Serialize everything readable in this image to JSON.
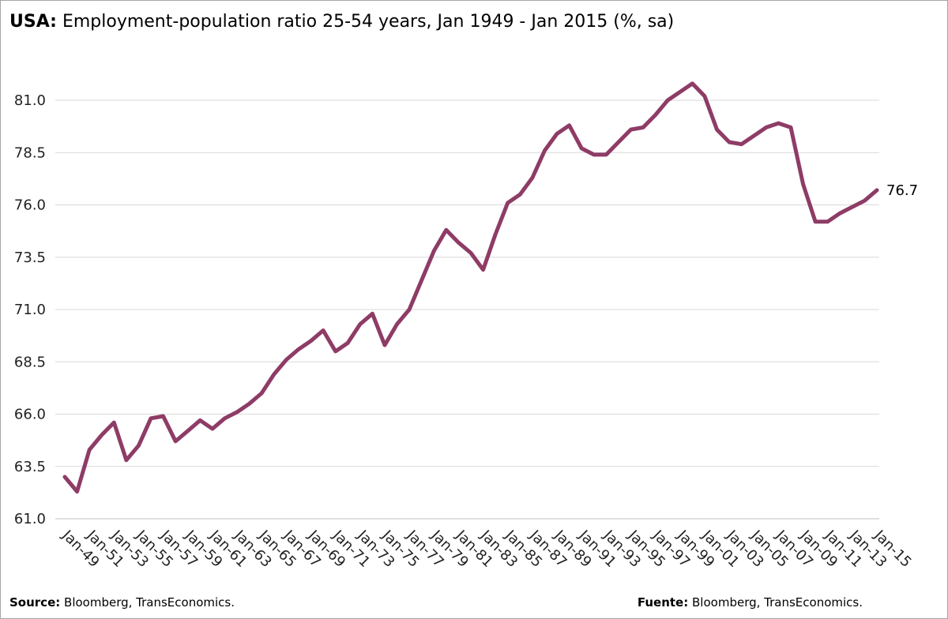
{
  "chart_data": {
    "type": "line",
    "title_bold": "USA:",
    "title": "Employment-population ratio 25-54 years, Jan 1949 - Jan 2015 (%, sa)",
    "source_left": {
      "label": "Source:",
      "text": "Bloomberg, TransEconomics."
    },
    "source_right": {
      "label": "Fuente:",
      "text": "Bloomberg, TransEconomics."
    },
    "categories": [
      "Jan-49",
      null,
      "Jan-51",
      null,
      "Jan-53",
      null,
      "Jan-55",
      null,
      "Jan-57",
      null,
      "Jan-59",
      null,
      "Jan-61",
      null,
      "Jan-63",
      null,
      "Jan-65",
      null,
      "Jan-67",
      null,
      "Jan-69",
      null,
      "Jan-71",
      null,
      "Jan-73",
      null,
      "Jan-75",
      null,
      "Jan-77",
      null,
      "Jan-79",
      null,
      "Jan-81",
      null,
      "Jan-83",
      null,
      "Jan-85",
      null,
      "Jan-87",
      null,
      "Jan-89",
      null,
      "Jan-91",
      null,
      "Jan-93",
      null,
      "Jan-95",
      null,
      "Jan-97",
      null,
      "Jan-99",
      null,
      "Jan-01",
      null,
      "Jan-03",
      null,
      "Jan-05",
      null,
      "Jan-07",
      null,
      "Jan-09",
      null,
      "Jan-11",
      null,
      "Jan-13",
      null,
      "Jan-15"
    ],
    "values": [
      63.0,
      62.3,
      64.3,
      65.0,
      65.6,
      63.8,
      64.5,
      65.8,
      65.9,
      64.7,
      65.2,
      65.7,
      65.3,
      65.8,
      66.1,
      66.5,
      67.0,
      67.9,
      68.6,
      69.1,
      69.5,
      70.0,
      69.0,
      69.4,
      70.3,
      70.8,
      69.3,
      70.3,
      71.0,
      72.4,
      73.8,
      74.8,
      74.2,
      73.7,
      72.9,
      74.6,
      76.1,
      76.5,
      77.3,
      78.6,
      79.4,
      79.8,
      78.7,
      78.4,
      78.4,
      79.0,
      79.6,
      79.7,
      80.3,
      81.0,
      81.4,
      81.8,
      81.2,
      79.6,
      79.0,
      78.9,
      79.3,
      79.7,
      79.9,
      79.7,
      77.0,
      75.2,
      75.2,
      75.6,
      75.9,
      76.2,
      76.7
    ],
    "color": "#8e3c66",
    "ylim": [
      61,
      82.5
    ],
    "yticks": [
      {
        "value": 61,
        "label": "61.0"
      },
      63.5,
      {
        "value": 66,
        "label": "66.0"
      },
      68.5,
      {
        "value": 71,
        "label": "71.0"
      },
      73.5,
      {
        "value": 76,
        "label": "76.0"
      },
      78.5,
      {
        "value": 81,
        "label": "81.0"
      }
    ],
    "grid": true
  }
}
